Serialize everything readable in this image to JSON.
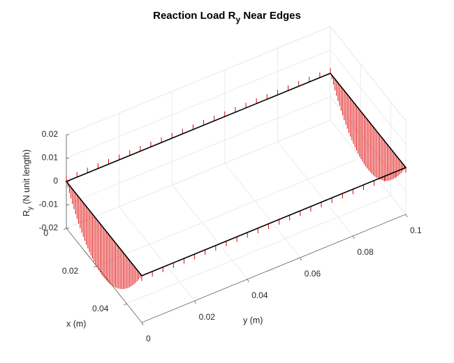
{
  "chart_data": {
    "type": "3d-stem",
    "title": {
      "main": "Reaction Load R",
      "sub": "y",
      "rest": " Near Edges"
    },
    "xlabel": "x (m)",
    "ylabel": "y (m)",
    "zlabel": {
      "main": "R",
      "sub": "y",
      "rest": " (N unit length)"
    },
    "xlim": [
      0,
      0.05
    ],
    "ylim": [
      0,
      0.1
    ],
    "zlim": [
      -0.02,
      0.02
    ],
    "x_ticks": [
      {
        "value": 0,
        "label": "0"
      },
      {
        "value": 0.02,
        "label": "0.02"
      },
      {
        "value": 0.04,
        "label": "0.04"
      }
    ],
    "y_ticks": [
      {
        "value": 0,
        "label": "0"
      },
      {
        "value": 0.02,
        "label": "0.02"
      },
      {
        "value": 0.04,
        "label": "0.04"
      },
      {
        "value": 0.06,
        "label": "0.06"
      },
      {
        "value": 0.08,
        "label": "0.08"
      },
      {
        "value": 0.1,
        "label": "0.1"
      }
    ],
    "z_ticks": [
      {
        "value": -0.02,
        "label": "-0.02"
      },
      {
        "value": -0.01,
        "label": "-0.01"
      },
      {
        "value": 0,
        "label": "0"
      },
      {
        "value": 0.01,
        "label": "0.01"
      },
      {
        "value": 0.02,
        "label": "0.02"
      }
    ],
    "grid": true,
    "plate_outline": {
      "x": [
        0,
        0.05
      ],
      "y": [
        0,
        0.1
      ],
      "z": 0,
      "color": "#000000"
    },
    "stem_color": "#e00000",
    "edges": [
      {
        "edge": "y=0",
        "axis": "x",
        "y": 0,
        "n": 50,
        "shape": "parabolic",
        "peak": -0.021
      },
      {
        "edge": "y=0.1",
        "axis": "x",
        "y": 0.1,
        "n": 50,
        "shape": "parabolic",
        "peak": -0.021
      },
      {
        "edge": "x=0",
        "axis": "y",
        "x": 0,
        "n": 26,
        "shape": "constant",
        "peak": 0.0022
      },
      {
        "edge": "x=0.05",
        "axis": "y",
        "x": 0.05,
        "n": 26,
        "shape": "constant",
        "peak": -0.0022
      }
    ]
  }
}
